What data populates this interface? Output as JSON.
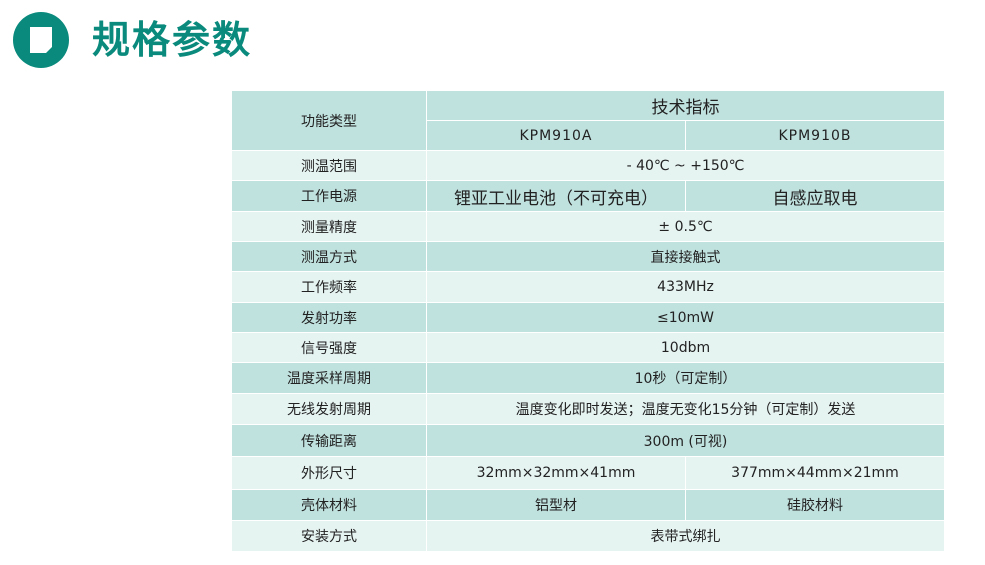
{
  "header": {
    "title": "规格参数",
    "logo_icon": "document-icon",
    "accent": "#0a8a7c"
  },
  "table": {
    "first_header": "功能类型",
    "group_header": "技术指标",
    "models": [
      "KPM910A",
      "KPM910B"
    ],
    "rows": [
      {
        "label": "测温范围",
        "value": "- 40℃ ~ +150℃"
      },
      {
        "label": "工作电源",
        "a": "锂亚工业电池（不可充电）",
        "b": "自感应取电"
      },
      {
        "label": "测量精度",
        "value": "± 0.5℃"
      },
      {
        "label": "测温方式",
        "value": "直接接触式"
      },
      {
        "label": "工作频率",
        "value": "433MHz"
      },
      {
        "label": "发射功率",
        "value": "≤10mW"
      },
      {
        "label": "信号强度",
        "value": "10dbm"
      },
      {
        "label": "温度采样周期",
        "value": "10秒（可定制）"
      },
      {
        "label": "无线发射周期",
        "value": "温度变化即时发送；温度无变化15分钟（可定制）发送"
      },
      {
        "label": "传输距离",
        "value": "300m (可视)"
      },
      {
        "label": "外形尺寸",
        "a": "32mm×32mm×41mm",
        "b": "377mm×44mm×21mm"
      },
      {
        "label": "壳体材料",
        "a": "铝型材",
        "b": "硅胶材料"
      },
      {
        "label": "安装方式",
        "value": "表带式绑扎"
      }
    ]
  }
}
